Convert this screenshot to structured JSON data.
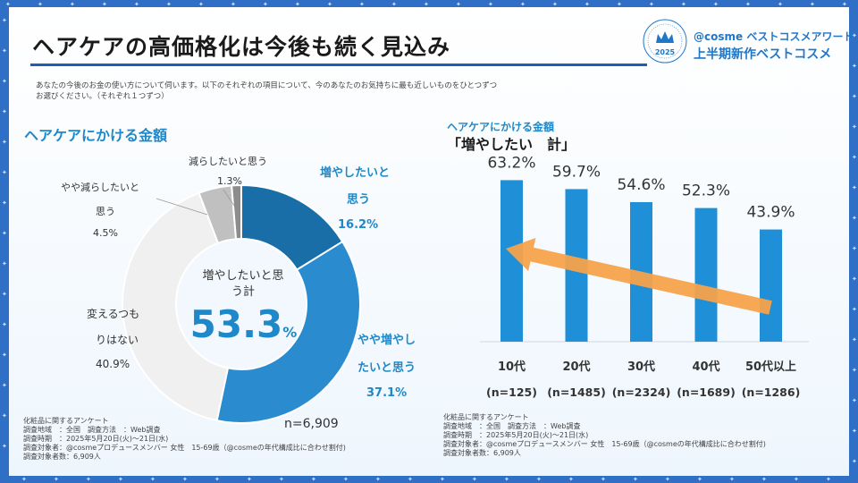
{
  "title": "ヘアケアの高価格化は今後も続く見込み",
  "award": {
    "brand_line": "@cosme ベストコスメアワード",
    "sub_line": "上半期新作ベストコスメ",
    "badge_year": "2025"
  },
  "question": "あなたの今後のお金の使い方について伺います。以下のそれぞれの項目について、今のあなたのお気持ちに最も近しいものをひとつずつお選びください。（それぞれ１つずつ）",
  "colors": {
    "accent": "#1e88c8",
    "dark_blue": "#1a6ea8",
    "mid_blue": "#2a8ccf",
    "gray": "#c0c0c0",
    "light": "#f0f0f0",
    "arrow": "#f5a34b"
  },
  "left": {
    "heading": "ヘアケアにかける金額",
    "center_label": "増やしたいと思う計",
    "center_value": "53.3",
    "center_unit": "%",
    "n": "n=6,909",
    "labels": {
      "increase_l1": "増やしたいと",
      "increase_l2": "思う",
      "increase_pct": "16.2%",
      "somewhat_inc_l1": "やや増やし",
      "somewhat_inc_l2": "たいと思う",
      "somewhat_inc_pct": "37.1%",
      "no_change_l1": "変えるつも",
      "no_change_l2": "りはない",
      "no_change_pct": "40.9%",
      "somewhat_dec_l1": "やや減らしたいと",
      "somewhat_dec_l2": "思う",
      "somewhat_dec_pct": "4.5%",
      "decrease_l1": "減らしたいと思う",
      "decrease_pct": "1.3%"
    },
    "footnote": [
      "化粧品に関するアンケート",
      "調査地域　：全国　調査方法　：Web調査",
      "調査時期　：2025年5月20日(火)～21日(水)",
      "調査対象者：@cosmeプロデュースメンバー 女性　15-69歳（@cosmeの年代構成比に合わせ割付)",
      "調査対象者数：6,909人"
    ]
  },
  "right": {
    "heading1": "ヘアケアにかける金額",
    "heading2": "「増やしたい　計」",
    "footnote": [
      "化粧品に関するアンケート",
      "調査地域　：全国　調査方法　：Web調査",
      "調査時期　：2025年5月20日(火)～21日(水)",
      "調査対象者：@cosmeプロデュースメンバー 女性　15-69歳（@cosmeの年代構成比に合わせ割付)",
      "調査対象者数：6,909人"
    ]
  },
  "chart_data": [
    {
      "type": "pie",
      "title": "ヘアケアにかける金額",
      "categories": [
        "増やしたいと思う",
        "やや増やしたいと思う",
        "変えるつもりはない",
        "やや減らしたいと思う",
        "減らしたいと思う"
      ],
      "values": [
        16.2,
        37.1,
        40.9,
        4.5,
        1.3
      ],
      "colors": [
        "#1a6ea8",
        "#2a8ccf",
        "#f0f0f0",
        "#c0c0c0",
        "#8c8c8c"
      ]
    },
    {
      "type": "bar",
      "title": "ヘアケアにかける金額「増やしたい　計」",
      "categories": [
        "10代",
        "20代",
        "30代",
        "40代",
        "50代以上"
      ],
      "n_labels": [
        "(n=125)",
        "(n=1485)",
        "(n=2324)",
        "(n=1689)",
        "(n=1286)"
      ],
      "values": [
        63.2,
        59.7,
        54.6,
        52.3,
        43.9
      ],
      "value_labels": [
        "63.2%",
        "59.7%",
        "54.6%",
        "52.3%",
        "43.9%"
      ],
      "ylim": [
        0,
        70
      ],
      "annotation": "arrow from 50代以上 toward 10代"
    }
  ]
}
